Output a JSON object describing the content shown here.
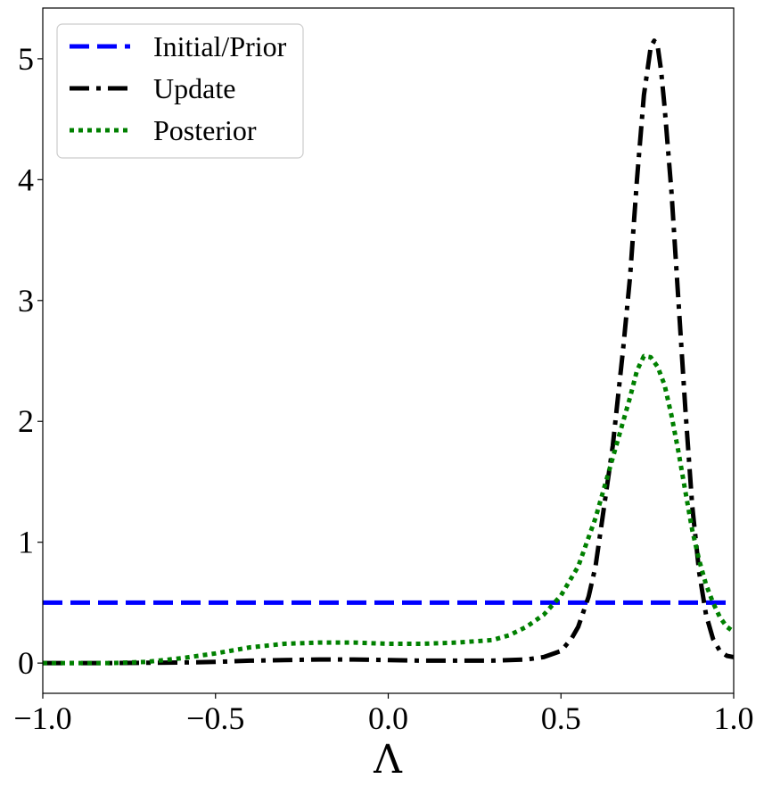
{
  "chart_data": {
    "type": "line",
    "title": "",
    "xlabel": "Λ",
    "ylabel": "",
    "xlim": [
      -1.0,
      1.0
    ],
    "ylim": [
      -0.25,
      5.42
    ],
    "x_ticks": [
      -1.0,
      -0.5,
      0.0,
      0.5,
      1.0
    ],
    "x_tick_labels": [
      "−1.0",
      "−0.5",
      "0.0",
      "0.5",
      "1.0"
    ],
    "y_ticks": [
      0,
      1,
      2,
      3,
      4,
      5
    ],
    "y_tick_labels": [
      "0",
      "1",
      "2",
      "3",
      "4",
      "5"
    ],
    "grid": false,
    "legend_position": "upper-left",
    "series": [
      {
        "name": "Initial/Prior",
        "color": "#0000ff",
        "style": "dashed",
        "x": [
          -1.0,
          1.0
        ],
        "y": [
          0.5,
          0.5
        ]
      },
      {
        "name": "Update",
        "color": "#000000",
        "style": "dashdot",
        "x": [
          -1.0,
          -0.8,
          -0.6,
          -0.5,
          -0.4,
          -0.3,
          -0.2,
          -0.1,
          0.0,
          0.1,
          0.2,
          0.3,
          0.4,
          0.45,
          0.5,
          0.53,
          0.55,
          0.58,
          0.6,
          0.62,
          0.65,
          0.68,
          0.7,
          0.72,
          0.74,
          0.76,
          0.77,
          0.78,
          0.79,
          0.8,
          0.82,
          0.84,
          0.86,
          0.88,
          0.9,
          0.92,
          0.94,
          0.96,
          0.98,
          1.0
        ],
        "y": [
          0.0,
          0.0,
          0.005,
          0.01,
          0.02,
          0.025,
          0.03,
          0.03,
          0.025,
          0.02,
          0.02,
          0.02,
          0.03,
          0.05,
          0.1,
          0.2,
          0.3,
          0.55,
          0.8,
          1.2,
          1.8,
          2.6,
          3.2,
          4.0,
          4.7,
          5.1,
          5.15,
          5.1,
          4.9,
          4.6,
          3.9,
          3.0,
          2.1,
          1.3,
          0.75,
          0.4,
          0.2,
          0.1,
          0.06,
          0.05
        ]
      },
      {
        "name": "Posterior",
        "color": "#008000",
        "style": "dotted",
        "x": [
          -1.0,
          -0.8,
          -0.7,
          -0.6,
          -0.5,
          -0.4,
          -0.3,
          -0.2,
          -0.1,
          0.0,
          0.1,
          0.2,
          0.3,
          0.35,
          0.4,
          0.45,
          0.5,
          0.55,
          0.6,
          0.65,
          0.7,
          0.72,
          0.74,
          0.76,
          0.78,
          0.8,
          0.82,
          0.84,
          0.86,
          0.88,
          0.9,
          0.92,
          0.94,
          0.96,
          0.98,
          1.0
        ],
        "y": [
          0.0,
          0.0,
          0.01,
          0.04,
          0.08,
          0.13,
          0.16,
          0.17,
          0.17,
          0.16,
          0.16,
          0.17,
          0.19,
          0.23,
          0.3,
          0.4,
          0.56,
          0.8,
          1.2,
          1.7,
          2.2,
          2.42,
          2.54,
          2.53,
          2.45,
          2.3,
          2.05,
          1.75,
          1.42,
          1.1,
          0.85,
          0.65,
          0.5,
          0.38,
          0.3,
          0.26
        ]
      }
    ]
  }
}
